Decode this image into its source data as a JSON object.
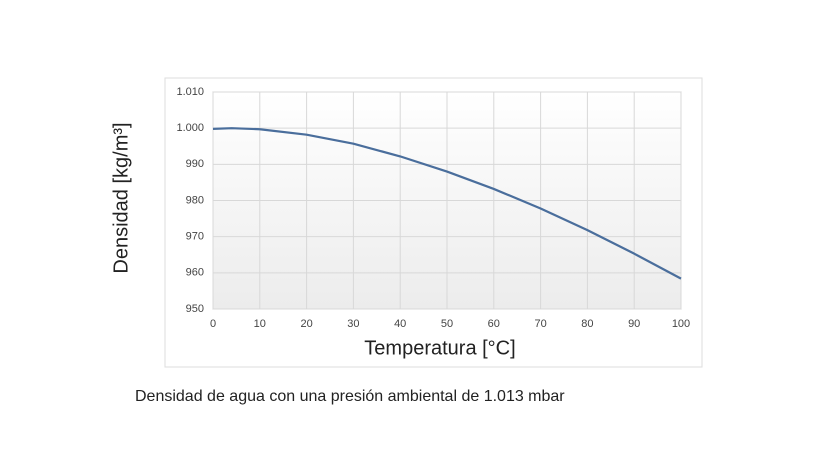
{
  "chart_data": {
    "type": "line",
    "x": [
      0,
      4,
      10,
      20,
      30,
      40,
      50,
      60,
      70,
      80,
      90,
      100
    ],
    "series": [
      {
        "color": "#4a6e9c",
        "values": [
          999.8,
          1000.0,
          999.7,
          998.2,
          995.7,
          992.2,
          988.0,
          983.2,
          977.8,
          971.8,
          965.3,
          958.4
        ]
      }
    ],
    "xlim": [
      0,
      100
    ],
    "xticks": [
      0,
      10,
      20,
      30,
      40,
      50,
      60,
      70,
      80,
      90,
      100
    ],
    "ylim": [
      950,
      1010
    ],
    "yticks": [
      950,
      960,
      970,
      980,
      990,
      {
        "value": 1000,
        "label": "1.000"
      },
      {
        "value": 1010,
        "label": "1.010"
      }
    ],
    "xlabel": "Temperatura [°C]",
    "ylabel": "Densidad [kg/m³]",
    "caption": "Densidad de agua con una presión ambiental de 1.013 mbar",
    "grid": true
  }
}
